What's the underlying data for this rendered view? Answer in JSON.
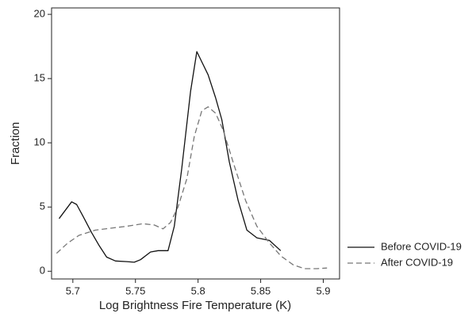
{
  "chart_data": {
    "type": "line",
    "x_label": "Log Brightness Fire Temperature (K)",
    "y_label": "Fraction",
    "xlim": [
      5.683,
      5.913
    ],
    "xticks": [
      5.7,
      5.75,
      5.8,
      5.85,
      5.9
    ],
    "ylim": [
      -0.6,
      20.5
    ],
    "yticks": [
      0,
      5,
      10,
      15,
      20
    ],
    "legend": "right",
    "series": [
      {
        "name": "Before COVID-19",
        "color": "#111111",
        "dash": "solid",
        "x": [
          5.689,
          5.699,
          5.703,
          5.708,
          5.715,
          5.721,
          5.727,
          5.734,
          5.743,
          5.749,
          5.754,
          5.762,
          5.768,
          5.776,
          5.781,
          5.787,
          5.794,
          5.799,
          5.803,
          5.808,
          5.814,
          5.819,
          5.825,
          5.832,
          5.839,
          5.847,
          5.857,
          5.866
        ],
        "values": [
          4.1,
          5.4,
          5.2,
          4.3,
          3.0,
          2.0,
          1.1,
          0.8,
          0.75,
          0.7,
          0.9,
          1.5,
          1.6,
          1.6,
          3.5,
          8,
          14,
          17.1,
          16.3,
          15.3,
          13.5,
          11.8,
          8.5,
          5.5,
          3.2,
          2.6,
          2.4,
          1.6
        ]
      },
      {
        "name": "After COVID-19",
        "color": "#777777",
        "dash": "dashed",
        "x": [
          5.687,
          5.696,
          5.705,
          5.718,
          5.73,
          5.743,
          5.756,
          5.765,
          5.772,
          5.778,
          5.784,
          5.791,
          5.797,
          5.803,
          5.808,
          5.814,
          5.82,
          5.828,
          5.838,
          5.847,
          5.857,
          5.866,
          5.876,
          5.885,
          5.895,
          5.903
        ],
        "values": [
          1.4,
          2.2,
          2.8,
          3.2,
          3.35,
          3.5,
          3.7,
          3.6,
          3.3,
          3.8,
          5.0,
          7.2,
          10.5,
          12.5,
          12.8,
          12.3,
          11,
          8.5,
          5.5,
          3.5,
          2.2,
          1.2,
          0.5,
          0.2,
          0.2,
          0.25
        ]
      }
    ]
  }
}
